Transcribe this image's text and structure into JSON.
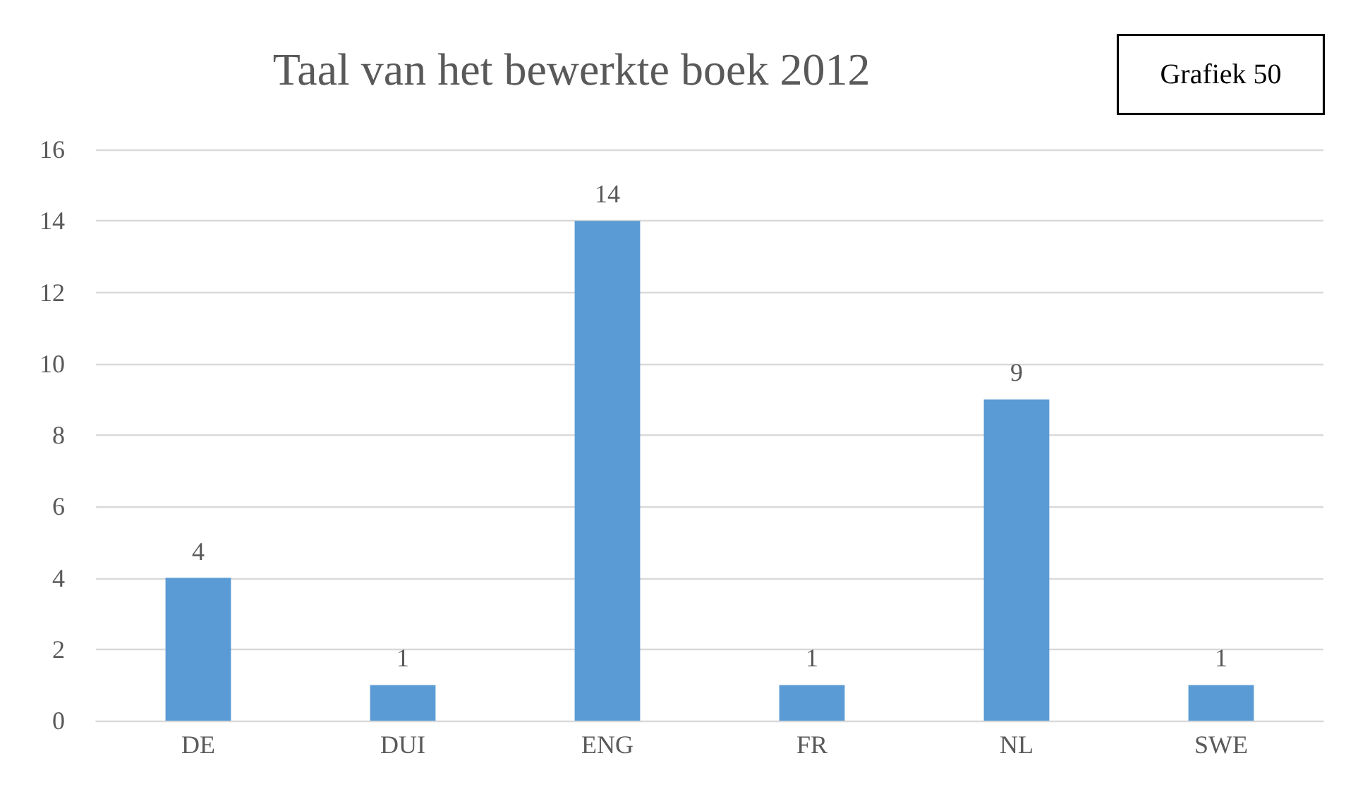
{
  "chart_data": {
    "type": "bar",
    "title": "Taal van het bewerkte boek 2012",
    "annotations": [
      "Grafiek 50"
    ],
    "categories": [
      "DE",
      "DUI",
      "ENG",
      "FR",
      "NL",
      "SWE"
    ],
    "values": [
      4,
      1,
      14,
      1,
      9,
      1
    ],
    "color": "#5b9bd5",
    "ylim": [
      0,
      16
    ],
    "yticks": [
      0,
      2,
      4,
      6,
      8,
      10,
      12,
      14,
      16
    ],
    "grid": "y",
    "data_labels": true
  }
}
